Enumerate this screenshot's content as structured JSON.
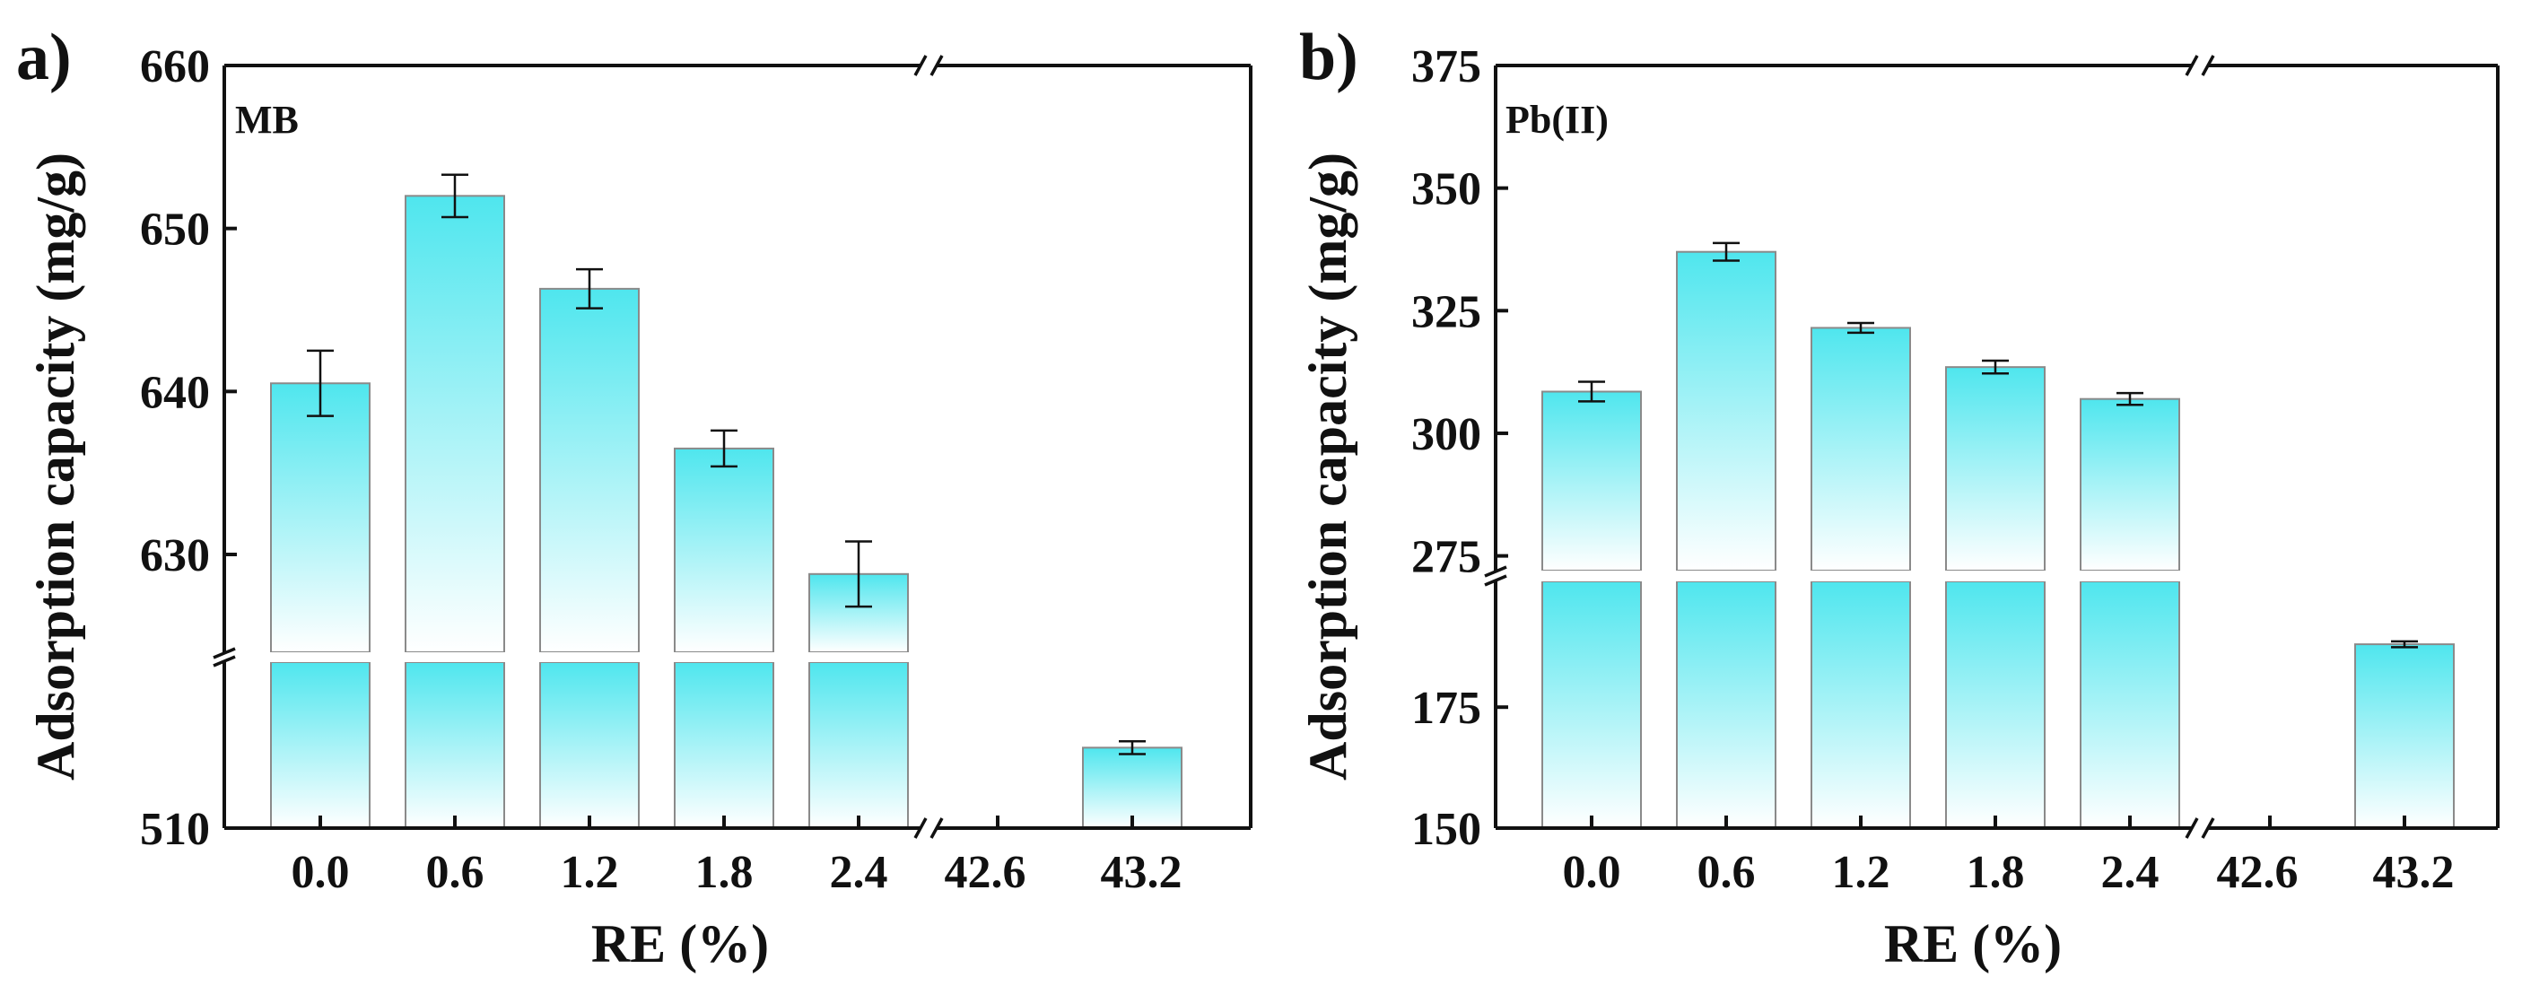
{
  "chart_data": [
    {
      "type": "bar",
      "panel_label": "a)",
      "series_label": "MB",
      "xlabel": "RE (%)",
      "ylabel": "Adsorption capacity (mg/g)",
      "categories": [
        "0.0",
        "0.6",
        "1.2",
        "1.8",
        "2.4",
        "42.6",
        "43.2"
      ],
      "bars": [
        {
          "category": "0.0",
          "value": 640.5,
          "error": 2.0
        },
        {
          "category": "0.6",
          "value": 652.0,
          "error": 1.3
        },
        {
          "category": "1.2",
          "value": 646.3,
          "error": 1.2
        },
        {
          "category": "1.8",
          "value": 636.5,
          "error": 1.1
        },
        {
          "category": "2.4",
          "value": 628.8,
          "error": 2.0
        },
        {
          "category": "43.2",
          "value": 516.3,
          "error": 0.5
        }
      ],
      "y_break": {
        "lower_range": [
          510,
          523
        ],
        "upper_range": [
          624,
          660
        ]
      },
      "yticks": [
        510,
        630,
        640,
        650,
        660
      ],
      "ytick_labels": [
        "510",
        "630",
        "640",
        "650",
        "660"
      ],
      "x_break_between": [
        "2.4",
        "42.6"
      ]
    },
    {
      "type": "bar",
      "panel_label": "b)",
      "series_label": "Pb(II)",
      "xlabel": "RE (%)",
      "ylabel": "Adsorption capacity (mg/g)",
      "categories": [
        "0.0",
        "0.6",
        "1.2",
        "1.8",
        "2.4",
        "42.6",
        "43.2"
      ],
      "bars": [
        {
          "category": "0.0",
          "value": 308.5,
          "error": 2.0
        },
        {
          "category": "0.6",
          "value": 337.0,
          "error": 1.8
        },
        {
          "category": "1.2",
          "value": 321.5,
          "error": 1.0
        },
        {
          "category": "1.8",
          "value": 313.5,
          "error": 1.3
        },
        {
          "category": "2.4",
          "value": 307.0,
          "error": 1.2
        },
        {
          "category": "43.2",
          "value": 188.0,
          "error": 0.6
        }
      ],
      "y_break": {
        "lower_range": [
          150,
          201
        ],
        "upper_range": [
          272,
          375
        ]
      },
      "yticks": [
        150,
        175,
        275,
        300,
        325,
        350,
        375
      ],
      "ytick_labels": [
        "150",
        "175",
        "275",
        "300",
        "325",
        "350",
        "375"
      ],
      "x_break_between": [
        "2.4",
        "42.6"
      ]
    }
  ],
  "colors": {
    "bar_top": "#4fe6ee",
    "bar_bottom": "#ffffff",
    "bar_edge": "#8a8a8a",
    "axis": "#111111"
  }
}
